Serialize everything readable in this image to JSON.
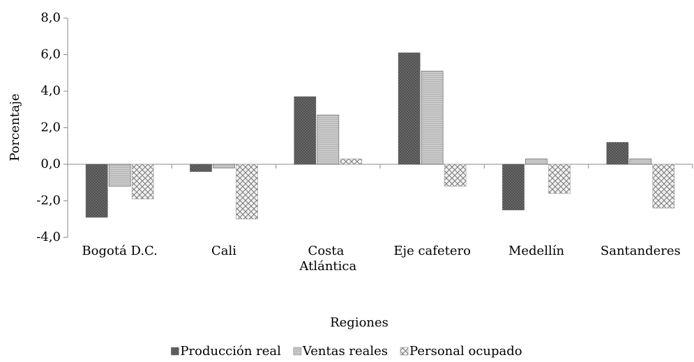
{
  "chart_data": {
    "type": "bar",
    "categories": [
      "Bogotá D.C.",
      "Cali",
      "Costa Atlántica",
      "Eje cafetero",
      "Medellín",
      "Santanderes"
    ],
    "series": [
      {
        "name": "Producción real",
        "color": "#6f6f6f",
        "values": [
          -2.9,
          -0.4,
          3.7,
          6.1,
          -2.5,
          1.2
        ]
      },
      {
        "name": "Ventas reales",
        "color": "#c9c9c9",
        "values": [
          -1.2,
          -0.2,
          2.7,
          5.1,
          0.3,
          0.3
        ]
      },
      {
        "name": "Personal ocupado",
        "color": "#f2f2f2",
        "values": [
          -1.9,
          -3.0,
          0.3,
          -1.2,
          -1.6,
          -2.4
        ]
      }
    ],
    "ylabel": "Porcentaje",
    "xlabel": "Regiones",
    "ylim": [
      -4,
      8
    ],
    "yticks": [
      {
        "value": -4,
        "label": "-4,0"
      },
      {
        "value": -2,
        "label": "-2,0"
      },
      {
        "value": 0,
        "label": "0,0"
      },
      {
        "value": 2,
        "label": "2,0"
      },
      {
        "value": 4,
        "label": "4,0"
      },
      {
        "value": 6,
        "label": "6,0"
      },
      {
        "value": 8,
        "label": "8,0"
      }
    ],
    "legend": "bottom"
  }
}
